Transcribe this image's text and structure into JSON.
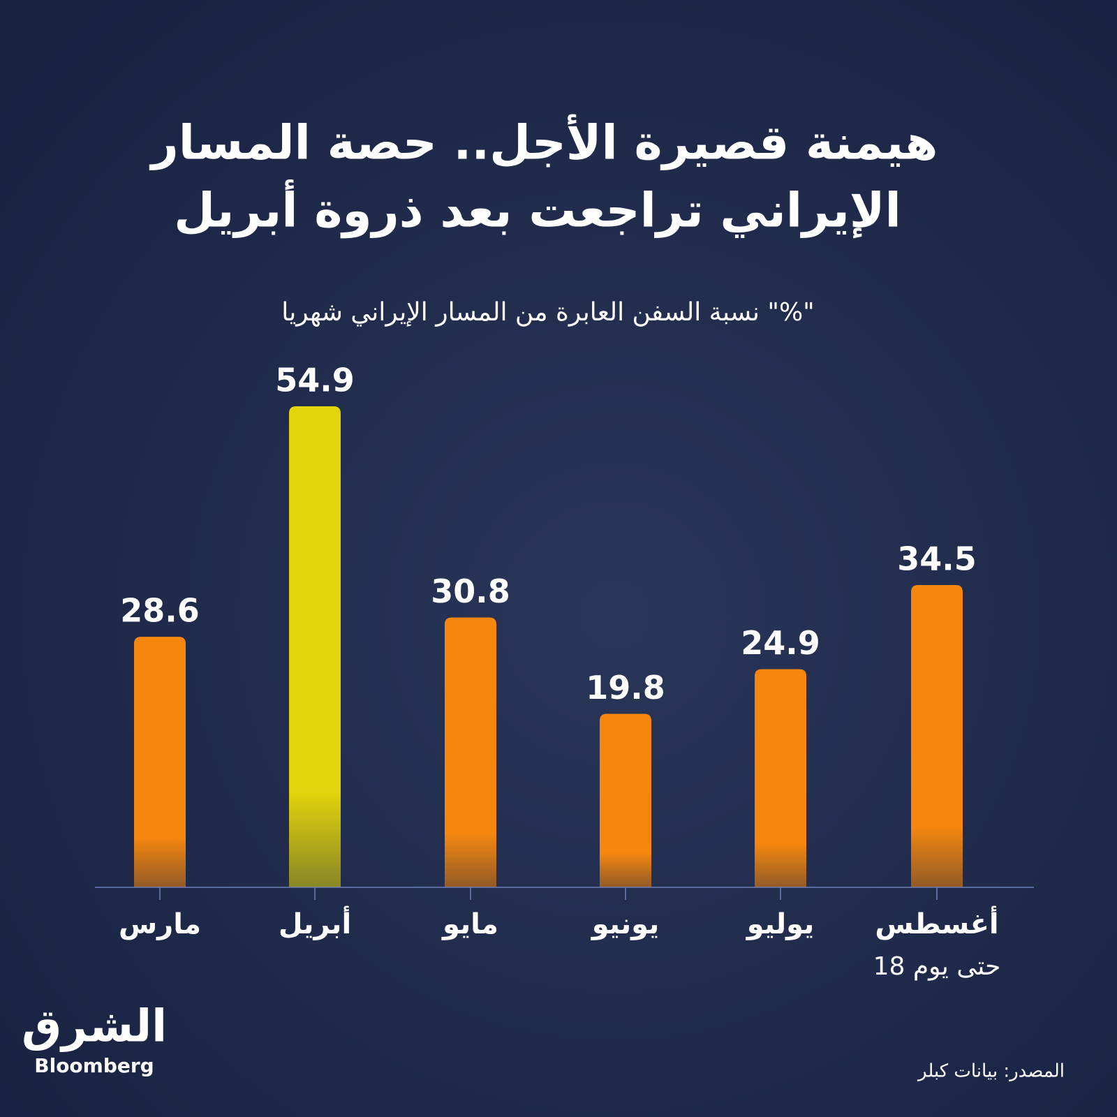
{
  "chart_data": {
    "type": "bar",
    "title": [
      "هيمنة قصيرة الأجل.. حصة المسار",
      "الإيراني تراجعت بعد ذروة أبريل"
    ],
    "subtitle": "نسبة السفن العابرة من المسار الإيراني شهريا \"%\"",
    "categories": [
      "مارس",
      "أبريل",
      "مايو",
      "يونيو",
      "يوليو",
      "أغسطس"
    ],
    "category_note": "حتى يوم 18",
    "values": [
      28.6,
      54.9,
      30.8,
      19.8,
      24.9,
      34.5
    ],
    "colors": [
      "#f5870f",
      "#e3d50c",
      "#f5870f",
      "#f5870f",
      "#f5870f",
      "#f5870f"
    ],
    "ylim": [
      0,
      60
    ],
    "source": "المصدر: بيانات كبلر",
    "logo": {
      "arabic": "الشرق",
      "latin": "Bloomberg"
    }
  }
}
